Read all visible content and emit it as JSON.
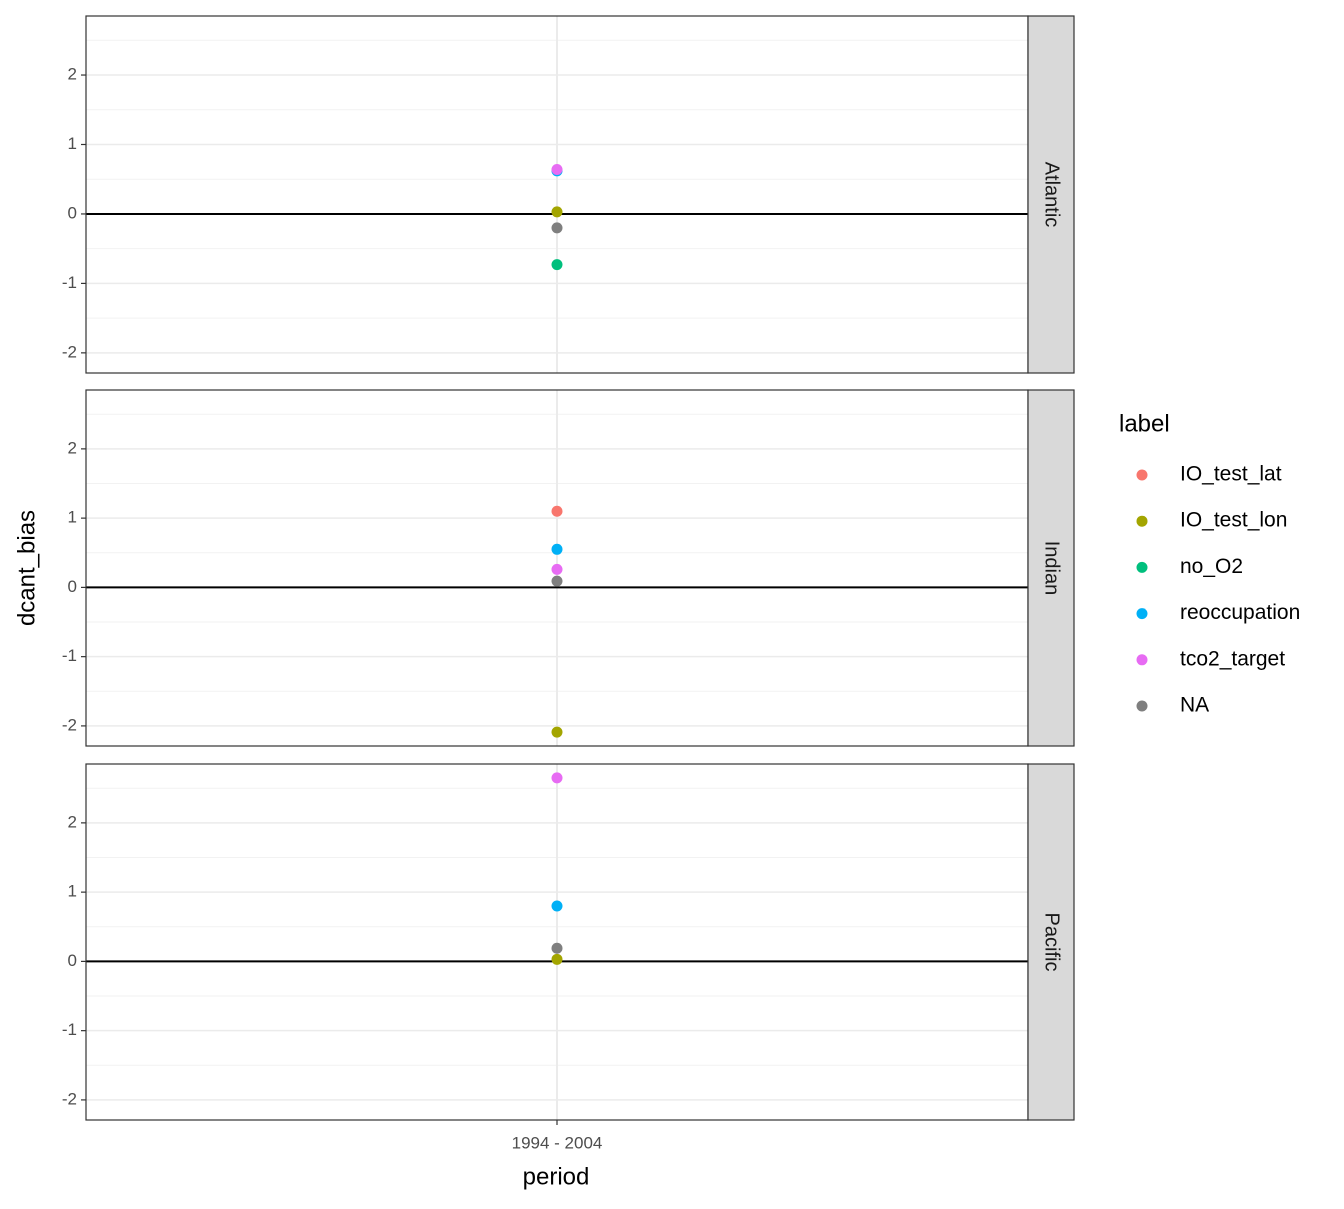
{
  "chart_data": {
    "type": "scatter",
    "x_label": "period",
    "y_label": "dcant_bias",
    "legend_title": "label",
    "categories": [
      "1994 - 2004"
    ],
    "facets": [
      "Atlantic",
      "Indian",
      "Pacific"
    ],
    "series": [
      {
        "name": "IO_test_lat",
        "color": "#f8766d",
        "values": [
          null,
          1.1,
          null
        ]
      },
      {
        "name": "IO_test_lon",
        "color": "#a3a500",
        "values": [
          0.03,
          -2.09,
          0.03
        ]
      },
      {
        "name": "no_O2",
        "color": "#00bf7d",
        "values": [
          -0.73,
          null,
          null
        ]
      },
      {
        "name": "reoccupation",
        "color": "#00b0f6",
        "values": [
          0.62,
          0.55,
          0.8
        ]
      },
      {
        "name": "tco2_target",
        "color": "#e76bf3",
        "values": [
          0.64,
          0.26,
          2.65
        ]
      },
      {
        "name": "NA",
        "color": "#7f7f7f",
        "values": [
          -0.2,
          0.09,
          0.19
        ]
      }
    ],
    "ylim": [
      -2.29,
      2.85
    ],
    "yticks": [
      -2,
      -1,
      0,
      1,
      2
    ],
    "grid": true,
    "zero_line": true,
    "legend": "right"
  }
}
